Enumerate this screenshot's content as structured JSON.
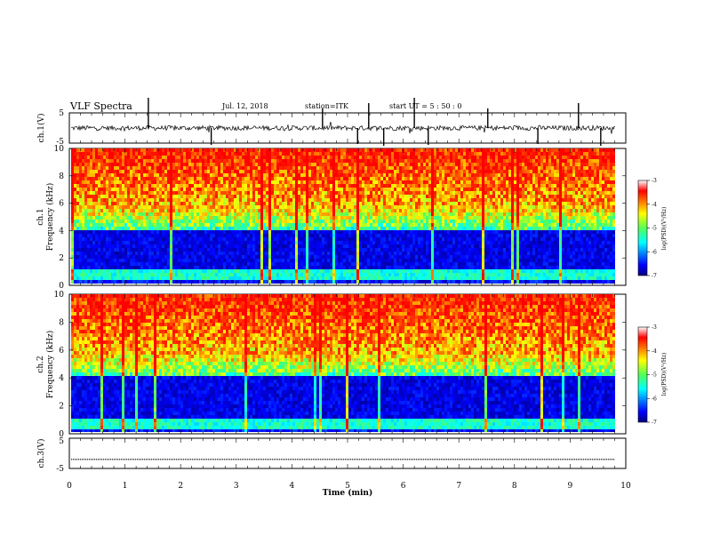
{
  "header": {
    "title": "VLF Spectra",
    "date": "Jul. 12, 2018",
    "station": "station=ITK",
    "start": "start UT = 5 : 50 : 0"
  },
  "chart_data": [
    {
      "type": "line",
      "panel": "ch1-waveform",
      "ylabel": "ch.1(V)",
      "ylim": [
        -5,
        5
      ],
      "yticks": [
        "5",
        "-5"
      ],
      "xlim": [
        0,
        10
      ],
      "baseline_v": 0,
      "spike_times_min": [
        1.42,
        2.55,
        4.55,
        5.18,
        5.38,
        5.65,
        6.2,
        6.45,
        7.52,
        8.42,
        9.15,
        9.55
      ]
    },
    {
      "type": "heatmap",
      "panel": "ch1-spectrogram",
      "ylabel": "ch.1 Frequency (kHz)",
      "ylabel_lines": [
        "ch.1",
        "Frequency (kHz)"
      ],
      "ylim": [
        0,
        10
      ],
      "yticks": [
        "0",
        "2",
        "4",
        "6",
        "8",
        "10"
      ],
      "xlim": [
        0,
        10
      ],
      "colorbar": {
        "label": "log(PSD)(V²/Hz)",
        "range": [
          -7,
          -3
        ],
        "ticks": [
          "-3",
          "-4",
          "-5",
          "-6",
          "-7"
        ],
        "colormap": "jet"
      }
    },
    {
      "type": "heatmap",
      "panel": "ch2-spectrogram",
      "ylabel": "ch.2 Frequency (kHz)",
      "ylabel_lines": [
        "ch.2",
        "Frequency (kHz)"
      ],
      "ylim": [
        0,
        10
      ],
      "yticks": [
        "0",
        "2",
        "4",
        "6",
        "8",
        "10"
      ],
      "xlim": [
        0,
        10
      ],
      "colorbar": {
        "label": "log(PSD)(V²/Hz)",
        "range": [
          -7,
          -3
        ],
        "ticks": [
          "-3",
          "-4",
          "-5",
          "-6",
          "-7"
        ],
        "colormap": "jet"
      }
    },
    {
      "type": "line",
      "panel": "ch3-waveform",
      "ylabel": "ch.3(V)",
      "ylim": [
        -5,
        5
      ],
      "yticks": [
        "5",
        "-5"
      ],
      "xlim": [
        0,
        10
      ],
      "baseline_v": -2
    }
  ],
  "xaxis": {
    "label": "Time (min)",
    "range": [
      0,
      10
    ],
    "ticks": [
      "0",
      "1",
      "2",
      "3",
      "4",
      "5",
      "6",
      "7",
      "8",
      "9",
      "10"
    ]
  }
}
